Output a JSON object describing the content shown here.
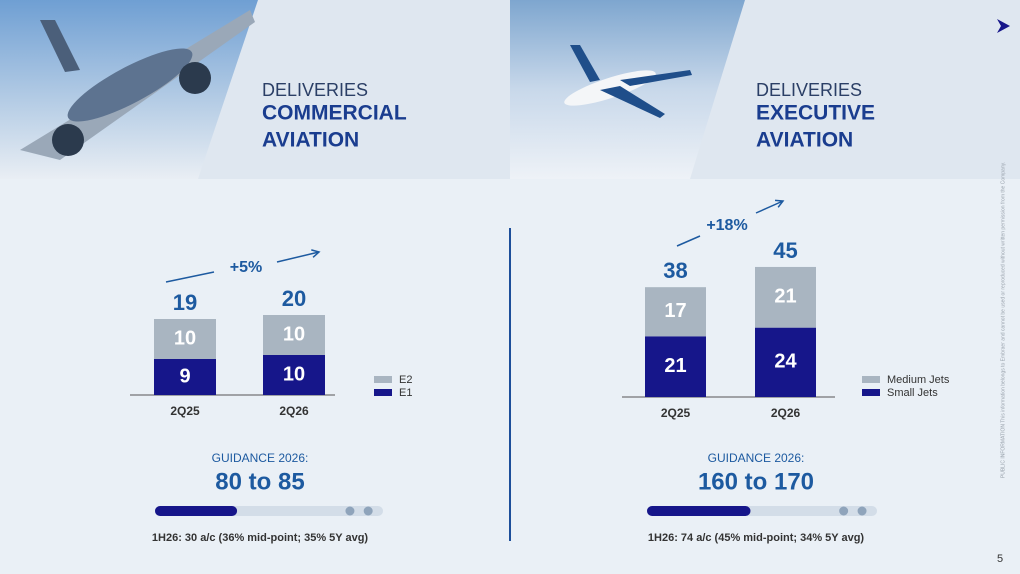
{
  "chart_data": [
    {
      "type": "bar",
      "stacked": true,
      "categories": [
        "2Q25",
        "2Q26"
      ],
      "series": [
        {
          "name": "E1",
          "color": "#16168a",
          "values": [
            9,
            10
          ]
        },
        {
          "name": "E2",
          "color": "#a9b5c1",
          "values": [
            10,
            10
          ]
        }
      ],
      "totals": [
        19,
        20
      ],
      "growth": "+5%"
    },
    {
      "type": "bar",
      "stacked": true,
      "categories": [
        "2Q25",
        "2Q26"
      ],
      "series": [
        {
          "name": "Small Jets",
          "color": "#16168a",
          "values": [
            21,
            24
          ]
        },
        {
          "name": "Medium Jets",
          "color": "#a9b5c1",
          "values": [
            17,
            21
          ]
        }
      ],
      "totals": [
        38,
        45
      ],
      "growth": "+18%"
    }
  ],
  "panels": [
    {
      "kicker": "DELIVERIES",
      "title_lines": [
        "COMMERCIAL",
        "AVIATION"
      ],
      "guidance_label": "GUIDANCE 2026:",
      "guidance_range": "80 to 85",
      "progress": 36,
      "note": "1H26: 30 a/c (36% mid-point; 35% 5Y avg)"
    },
    {
      "kicker": "DELIVERIES",
      "title_lines": [
        "EXECUTIVE",
        "AVIATION"
      ],
      "guidance_label": "GUIDANCE 2026:",
      "guidance_range": "160 to 170",
      "progress": 45,
      "note": "1H26: 74 a/c (45% mid-point; 34% 5Y avg)"
    }
  ],
  "side_text": "PUBLIC INFORMATION    This information belongs to Embraer and cannot be used or reproduced without written permission from the Company.",
  "page_number": "5"
}
